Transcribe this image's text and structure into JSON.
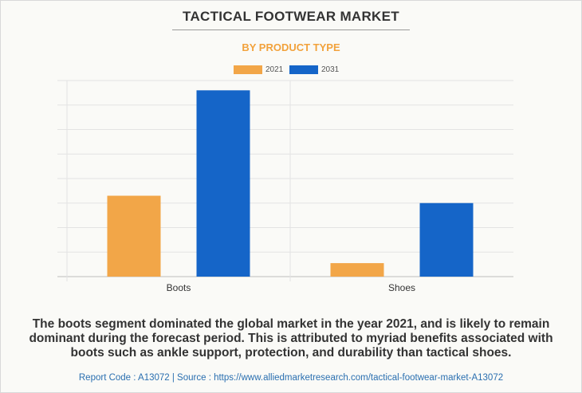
{
  "title": "TACTICAL FOOTWEAR MARKET",
  "subtitle": "BY PRODUCT TYPE",
  "caption": "The boots segment dominated the global market in the year 2021, and is likely to remain dominant during the forecast period. This is attributed to myriad benefits associated with boots such as ankle support, protection, and durability than tactical shoes.",
  "footer": "Report Code : A13072  |  Source : https://www.alliedmarketresearch.com/tactical-footwear-market-A13072",
  "colors": {
    "2021": "#f2a648",
    "2031": "#1565c8",
    "subtitle": "#f2a23c"
  },
  "chart_data": {
    "type": "bar",
    "categories": [
      "Boots",
      "Shoes"
    ],
    "series": [
      {
        "name": "2021",
        "values": [
          3.3,
          0.55
        ],
        "color": "#f2a648"
      },
      {
        "name": "2031",
        "values": [
          7.6,
          3.0
        ],
        "color": "#1565c8"
      }
    ],
    "ylim": [
      0,
      8
    ],
    "grid": true,
    "legend": "top-center",
    "y_tick_labels_shown": false
  }
}
